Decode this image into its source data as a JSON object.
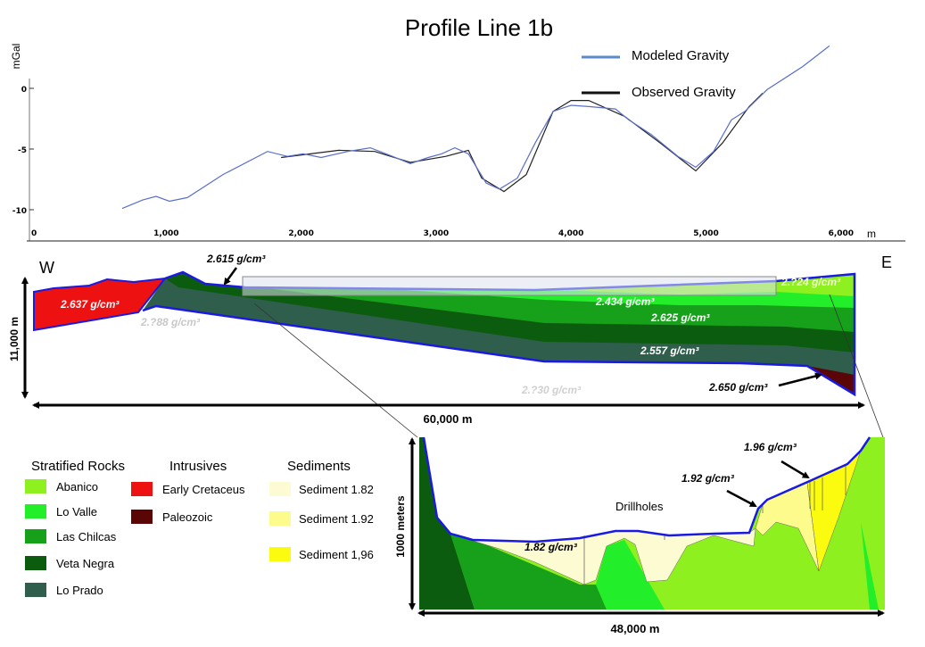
{
  "title": "Profile Line 1b",
  "chart_data": {
    "type": "line",
    "title": "Profile Line 1b",
    "ylabel": "mGal",
    "xlabel": "m",
    "xlim": [
      0,
      6500
    ],
    "ylim": [
      -12,
      5
    ],
    "xticks": [
      "0",
      "1,000",
      "2,000",
      "3,000",
      "4,000",
      "5,000",
      "6,000"
    ],
    "yticks": [
      "0",
      "-5",
      "-10"
    ],
    "legend_position": "top-right",
    "series": [
      {
        "name": "Modeled Gravity",
        "color": "#5b6fc9",
        "x": [
          674,
          826,
          925,
          1024,
          1157,
          1421,
          1751,
          1897,
          2016,
          2148,
          2346,
          2512,
          2677,
          2809,
          2941,
          3040,
          3139,
          3239,
          3371,
          3470,
          3602,
          3734,
          3867,
          4000,
          4131,
          4329,
          4428,
          4594,
          4792,
          4924,
          5056,
          5188,
          5288,
          5453,
          5717,
          5915
        ],
        "y": [
          -9.9,
          -9.2,
          -8.9,
          -9.3,
          -9.0,
          -7.1,
          -5.2,
          -5.6,
          -5.4,
          -5.7,
          -5.2,
          -4.9,
          -5.6,
          -6.2,
          -5.7,
          -5.4,
          -4.9,
          -5.4,
          -7.8,
          -8.3,
          -7.4,
          -4.5,
          -1.9,
          -1.4,
          -1.5,
          -1.7,
          -2.6,
          -3.8,
          -5.6,
          -6.5,
          -5.2,
          -2.6,
          -1.9,
          -0.1,
          1.8,
          3.5
        ]
      },
      {
        "name": "Observed Gravity",
        "color": "#222222",
        "x": [
          1851,
          2280,
          2545,
          2809,
          3073,
          3239,
          3338,
          3503,
          3668,
          3867,
          4000,
          4131,
          4395,
          4660,
          4924,
          5122,
          5320,
          5420
        ],
        "y": [
          -5.7,
          -5.1,
          -5.2,
          -6.1,
          -5.6,
          -5.1,
          -7.4,
          -8.5,
          -7.1,
          -1.9,
          -1.0,
          -1.0,
          -2.3,
          -4.5,
          -6.8,
          -4.5,
          -1.5,
          -0.4
        ]
      }
    ]
  },
  "section": {
    "west": "W",
    "east": "E",
    "height_label": "11,000 m",
    "width_label": "60,000 m",
    "densities": {
      "early_cretaceus": "2.637 g/cm³",
      "veta_negra": "2.615 g/cm³",
      "faint_west": "2.?88 g/cm³",
      "lo_valle": "2.434 g/cm³",
      "las_chilcas": "2.625 g/cm³",
      "lo_prado": "2.557 g/cm³",
      "faint_basement": "2.?30 g/cm³",
      "paleozoic": "2.650 g/cm³",
      "abanico": "2.?24 g/cm³"
    }
  },
  "inset": {
    "height_label": "1000 meters",
    "width_label": "48,000 m",
    "drillholes_label": "Drillholes",
    "sed_182": "1.82 g/cm³",
    "sed_192": "1.92 g/cm³",
    "sed_196": "1.96 g/cm³"
  },
  "legend": {
    "groups": [
      {
        "title": "Stratified Rocks",
        "items": [
          {
            "label": "Abanico",
            "color": "#8ef01e"
          },
          {
            "label": "Lo Valle",
            "color": "#22ee2a"
          },
          {
            "label": "Las Chilcas",
            "color": "#17a01a"
          },
          {
            "label": "Veta Negra",
            "color": "#0b5c0e"
          },
          {
            "label": "Lo Prado",
            "color": "#2f5e4c"
          }
        ]
      },
      {
        "title": "Intrusives",
        "items": [
          {
            "label": "Early Cretaceus",
            "color": "#ee1111"
          },
          {
            "label": "Paleozoic",
            "color": "#5a0606"
          }
        ]
      },
      {
        "title": "Sediments",
        "items": [
          {
            "label": "Sediment 1.82",
            "color": "#fdfbd2"
          },
          {
            "label": "Sediment 1.92",
            "color": "#fdfb8c"
          },
          {
            "label": "Sediment 1,96",
            "color": "#fbfb10"
          }
        ]
      }
    ]
  }
}
